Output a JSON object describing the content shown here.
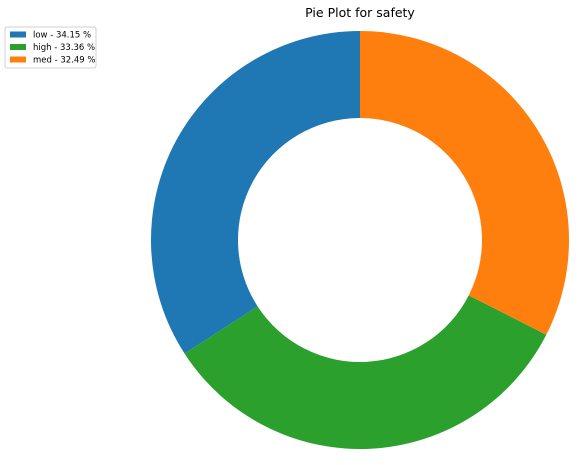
{
  "chart_data": {
    "type": "pie",
    "title": "Pie Plot for safety",
    "donut": true,
    "legend_position": "top-left",
    "slices": [
      {
        "label": "low",
        "value": 34.15,
        "legend": "low - 34.15 %",
        "color": "#1f77b4"
      },
      {
        "label": "high",
        "value": 33.36,
        "legend": "high - 33.36 %",
        "color": "#2ca02c"
      },
      {
        "label": "med",
        "value": 32.49,
        "legend": "med - 32.49 %",
        "color": "#ff7f0e"
      }
    ]
  }
}
